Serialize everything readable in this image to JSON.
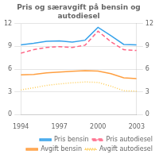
{
  "chart_data": {
    "type": "line",
    "title": "Pris og særavgift på bensin og autodiesel",
    "x": [
      1994,
      1995,
      1996,
      1997,
      1998,
      1999,
      2000,
      2001,
      2002,
      2003
    ],
    "series": [
      {
        "name": "Pris bensin",
        "line_style": "solid",
        "values": [
          9.2,
          9.4,
          9.65,
          9.7,
          9.55,
          9.8,
          11.5,
          10.4,
          9.25,
          9.2
        ]
      },
      {
        "name": "Pris autodiesel",
        "line_style": "dashed",
        "values": [
          8.1,
          8.55,
          8.85,
          8.95,
          8.85,
          9.15,
          11.0,
          9.6,
          8.55,
          8.45
        ]
      },
      {
        "name": "Avgift bensin",
        "line_style": "solid",
        "values": [
          5.25,
          5.3,
          5.5,
          5.6,
          5.7,
          5.8,
          5.75,
          5.4,
          4.85,
          4.75
        ]
      },
      {
        "name": "Avgift autodiesel",
        "line_style": "dotted",
        "values": [
          3.25,
          3.55,
          3.85,
          4.05,
          4.2,
          4.3,
          4.25,
          3.75,
          3.15,
          3.1
        ]
      }
    ],
    "xlim": [
      1994,
      2003
    ],
    "xticks": [
      1994,
      1997,
      2000,
      2003
    ],
    "ylim": [
      0,
      12
    ],
    "yticks": [
      0,
      3,
      6,
      9,
      12
    ],
    "y2lim": [
      0,
      12
    ],
    "y2ticks": [
      0,
      3,
      6,
      9,
      12
    ],
    "grid": "y",
    "legend": "lower right"
  }
}
